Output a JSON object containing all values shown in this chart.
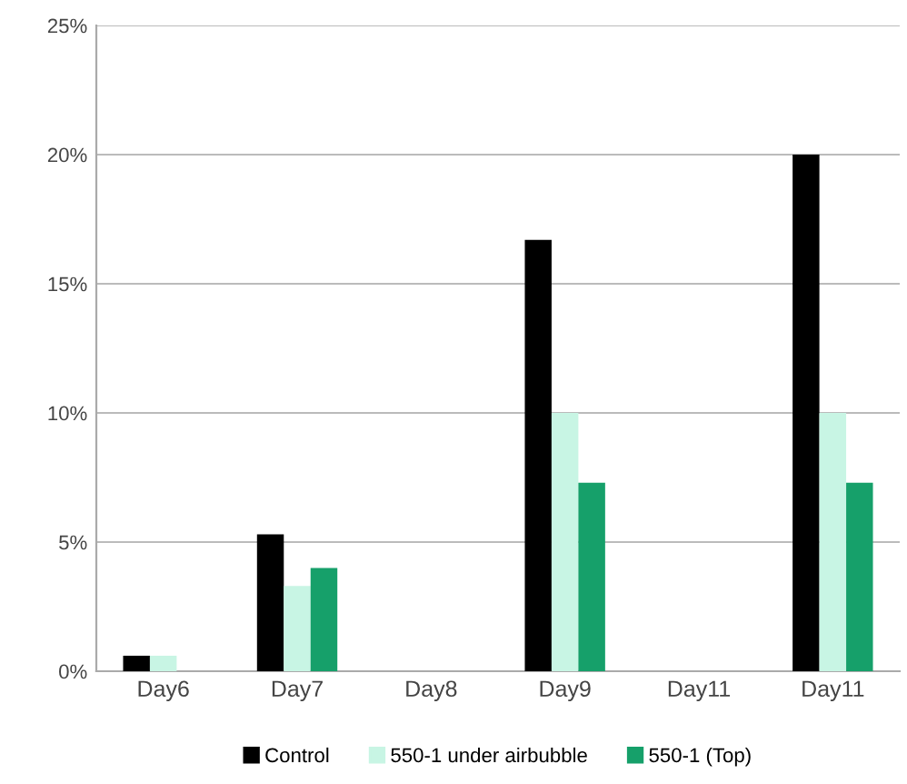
{
  "chart_data": {
    "type": "bar",
    "categories": [
      "Day6",
      "Day7",
      "Day8",
      "Day9",
      "Day11",
      "Day11"
    ],
    "series": [
      {
        "name": "Control",
        "color": "#000000",
        "values": [
          0.6,
          5.3,
          0,
          16.7,
          0,
          20.0
        ]
      },
      {
        "name": "550-1 under airbubble",
        "color": "#c8f5e4",
        "values": [
          0.6,
          3.3,
          0,
          10.0,
          0,
          10.0
        ]
      },
      {
        "name": "550-1 (Top)",
        "color": "#16a06a",
        "values": [
          0,
          4.0,
          0,
          7.3,
          0,
          7.3
        ]
      }
    ],
    "ylim": [
      0,
      25
    ],
    "yticks": [
      {
        "value": 0,
        "label": "0%"
      },
      {
        "value": 5,
        "label": "5%"
      },
      {
        "value": 10,
        "label": "10%"
      },
      {
        "value": 15,
        "label": "15%"
      },
      {
        "value": 20,
        "label": "20%"
      },
      {
        "value": 25,
        "label": "25%"
      }
    ],
    "grid": "y",
    "legend": "bottom"
  }
}
